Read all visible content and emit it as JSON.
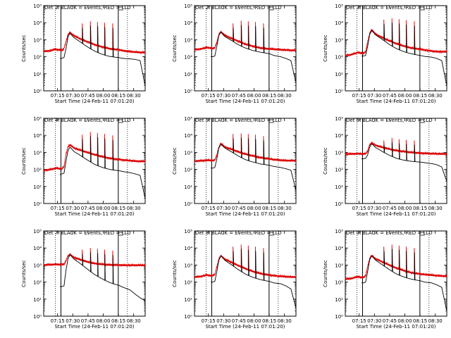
{
  "chart_data": {
    "type": "line",
    "scale": "log",
    "y_range": [
      1,
      100000
    ],
    "x_range_minutes": [
      0,
      100
    ],
    "xlabel": "Start Time (24-Feb-11 07:01:20)",
    "ylabel": "Counts/sec",
    "x_tick_labels": [
      "07:15",
      "07:30",
      "07:45",
      "08:00",
      "08:15",
      "08:30"
    ],
    "x_tick_minutes": [
      13.67,
      28.67,
      43.67,
      58.67,
      73.67,
      88.67
    ],
    "y_tick_labels": [
      "10⁰",
      "10¹",
      "10²",
      "10³",
      "10⁴",
      "10⁵"
    ],
    "legend_text": "BLACK = Events, RED = LLD",
    "series_colors": {
      "events": "#000000",
      "lld": "#dd0000"
    },
    "markers_minutes": {
      "dotted": [
        11.5,
        82.5
      ],
      "solid": [
        17.0,
        73.5
      ]
    },
    "sample_times_minutes": [
      0,
      5,
      10,
      12,
      14,
      16,
      18,
      20,
      22,
      24,
      26,
      28,
      30,
      34,
      38,
      42,
      46,
      50,
      55,
      60,
      65,
      70,
      74,
      78,
      85,
      90,
      95,
      100
    ],
    "panels": [
      {
        "title": "Det 1f",
        "lld": [
          210,
          220,
          260,
          280,
          260,
          250,
          240,
          300,
          800,
          2000,
          2700,
          2100,
          1700,
          1300,
          1000,
          800,
          650,
          520,
          420,
          350,
          300,
          270,
          260,
          230,
          200,
          190,
          180,
          180
        ],
        "events": [
          null,
          null,
          null,
          null,
          null,
          80,
          82,
          90,
          300,
          1500,
          2400,
          1700,
          1300,
          900,
          620,
          420,
          300,
          220,
          160,
          125,
          105,
          95,
          90,
          80,
          75,
          70,
          60,
          2
        ],
        "spikes_minutes": [
          38,
          46,
          53,
          60,
          68
        ],
        "spike_peaks": [
          9000,
          12000,
          11000,
          10000,
          9000
        ]
      },
      {
        "title": "Det 2f",
        "lld": [
          260,
          280,
          320,
          360,
          340,
          320,
          310,
          340,
          700,
          2000,
          2900,
          2300,
          1800,
          1400,
          1100,
          880,
          700,
          560,
          460,
          380,
          330,
          300,
          290,
          280,
          260,
          250,
          240,
          240
        ],
        "events": [
          null,
          null,
          null,
          null,
          null,
          100,
          100,
          110,
          400,
          1800,
          2800,
          2000,
          1500,
          1100,
          800,
          560,
          420,
          330,
          260,
          215,
          185,
          165,
          150,
          120,
          100,
          80,
          60,
          3
        ],
        "spikes_minutes": [
          38,
          46,
          53,
          60,
          68
        ],
        "spike_peaks": [
          9000,
          13000,
          12000,
          11000,
          9000
        ]
      },
      {
        "title": "Det 3f",
        "lld": [
          120,
          130,
          160,
          180,
          170,
          160,
          160,
          200,
          700,
          2300,
          3800,
          2800,
          2100,
          1600,
          1200,
          950,
          760,
          600,
          480,
          390,
          330,
          300,
          280,
          250,
          220,
          200,
          200,
          200
        ],
        "events": [
          null,
          null,
          null,
          null,
          null,
          110,
          110,
          120,
          400,
          2000,
          3600,
          2600,
          1900,
          1300,
          900,
          600,
          420,
          310,
          230,
          180,
          150,
          130,
          120,
          105,
          95,
          80,
          60,
          2
        ],
        "spikes_minutes": [
          38,
          46,
          53,
          60,
          68
        ],
        "spike_peaks": [
          15000,
          18000,
          16000,
          14000,
          12000
        ]
      },
      {
        "title": "Det 4f",
        "lld": [
          90,
          95,
          110,
          120,
          115,
          110,
          110,
          150,
          800,
          2200,
          2800,
          2200,
          1800,
          1500,
          1250,
          1050,
          880,
          740,
          620,
          520,
          450,
          410,
          390,
          360,
          330,
          310,
          300,
          300
        ],
        "events": [
          null,
          null,
          null,
          null,
          null,
          50,
          55,
          60,
          300,
          1300,
          2000,
          1500,
          1100,
          800,
          560,
          390,
          280,
          200,
          150,
          120,
          100,
          90,
          85,
          75,
          65,
          55,
          45,
          2
        ],
        "spikes_minutes": [
          38,
          46,
          53,
          60,
          68
        ],
        "spike_peaks": [
          11000,
          16000,
          14000,
          12000,
          10000
        ]
      },
      {
        "title": "Det 5f",
        "lld": [
          310,
          320,
          340,
          350,
          345,
          340,
          335,
          360,
          700,
          2000,
          3300,
          2600,
          2100,
          1700,
          1400,
          1150,
          950,
          800,
          680,
          580,
          500,
          450,
          420,
          380,
          350,
          330,
          330,
          330
        ],
        "events": [
          null,
          null,
          null,
          null,
          null,
          120,
          120,
          130,
          400,
          1800,
          3000,
          2300,
          1800,
          1300,
          950,
          680,
          500,
          380,
          300,
          250,
          210,
          190,
          175,
          150,
          130,
          110,
          90,
          6
        ],
        "spikes_minutes": [
          38,
          46,
          53,
          60,
          68
        ],
        "spike_peaks": [
          12000,
          13000,
          12000,
          11000,
          9000
        ]
      },
      {
        "title": "Det 6f",
        "lld": [
          800,
          820,
          830,
          840,
          830,
          820,
          820,
          850,
          1200,
          2800,
          3600,
          3000,
          2600,
          2200,
          1900,
          1650,
          1450,
          1300,
          1180,
          1080,
          1000,
          950,
          920,
          880,
          850,
          830,
          820,
          820
        ],
        "events": [
          null,
          null,
          null,
          null,
          null,
          420,
          430,
          450,
          700,
          2000,
          3200,
          2500,
          1900,
          1400,
          1000,
          750,
          580,
          460,
          380,
          330,
          300,
          280,
          270,
          250,
          220,
          190,
          140,
          20
        ],
        "spikes_minutes": [
          38,
          46,
          53,
          60,
          68
        ],
        "spike_peaks": [
          5000,
          7000,
          6000,
          5500,
          5000
        ]
      },
      {
        "title": "Det 7f",
        "lld": [
          1000,
          1050,
          1080,
          1100,
          1090,
          1080,
          1080,
          1100,
          1800,
          3500,
          4200,
          3400,
          2800,
          2300,
          1900,
          1600,
          1400,
          1250,
          1150,
          1080,
          1030,
          1010,
          1000,
          990,
          980,
          980,
          980,
          980
        ],
        "events": [
          null,
          null,
          null,
          null,
          null,
          55,
          55,
          60,
          500,
          2400,
          4000,
          3000,
          2200,
          1500,
          1000,
          650,
          420,
          280,
          190,
          130,
          95,
          75,
          65,
          50,
          35,
          20,
          12,
          8
        ],
        "spikes_minutes": [
          38,
          46,
          53,
          60,
          68
        ],
        "spike_peaks": [
          8000,
          10000,
          9000,
          8000,
          7000
        ]
      },
      {
        "title": "Det 8f",
        "lld": [
          200,
          210,
          240,
          260,
          250,
          240,
          240,
          280,
          800,
          2200,
          3600,
          2800,
          2200,
          1700,
          1300,
          1000,
          800,
          620,
          480,
          380,
          320,
          280,
          260,
          240,
          220,
          210,
          200,
          200
        ],
        "events": [
          null,
          null,
          null,
          null,
          null,
          100,
          100,
          110,
          400,
          1900,
          3400,
          2600,
          1900,
          1300,
          900,
          600,
          420,
          300,
          220,
          170,
          140,
          120,
          110,
          90,
          80,
          60,
          40,
          3
        ],
        "spikes_minutes": [
          38,
          46,
          53,
          60,
          68
        ],
        "spike_peaks": [
          12000,
          16000,
          14000,
          12000,
          10000
        ]
      },
      {
        "title": "Det 9f",
        "lld": [
          150,
          160,
          190,
          210,
          200,
          190,
          190,
          230,
          800,
          2400,
          3600,
          2900,
          2300,
          1800,
          1400,
          1100,
          860,
          680,
          540,
          430,
          360,
          320,
          300,
          280,
          260,
          240,
          230,
          230
        ],
        "events": [
          null,
          null,
          null,
          null,
          null,
          90,
          90,
          100,
          400,
          2000,
          3400,
          2600,
          1900,
          1300,
          900,
          620,
          430,
          310,
          230,
          180,
          150,
          130,
          120,
          100,
          90,
          70,
          50,
          2
        ],
        "spikes_minutes": [
          38,
          46,
          53,
          60,
          68
        ],
        "spike_peaks": [
          12000,
          16000,
          14000,
          12000,
          10000
        ]
      }
    ]
  }
}
